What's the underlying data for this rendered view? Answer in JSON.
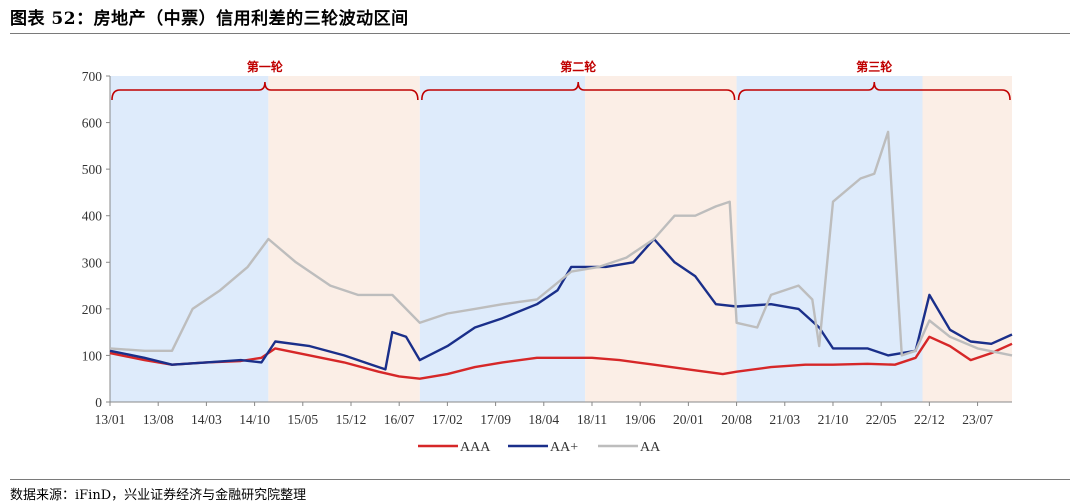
{
  "title": "图表 52：房地产（中票）信用利差的三轮波动区间",
  "source": "数据来源：iFinD，兴业证券经济与金融研究院整理",
  "chart_data": {
    "type": "line",
    "x_ticks": [
      "13/01",
      "13/08",
      "14/03",
      "14/10",
      "15/05",
      "15/12",
      "16/07",
      "17/02",
      "17/09",
      "18/04",
      "18/11",
      "19/06",
      "20/01",
      "20/08",
      "21/03",
      "21/10",
      "22/05",
      "22/12",
      "23/07"
    ],
    "ylim": [
      0,
      700
    ],
    "y_ticks": [
      0,
      100,
      200,
      300,
      400,
      500,
      600,
      700
    ],
    "phases": [
      {
        "label": "第一轮",
        "start": "2013/01",
        "end": "2016/10"
      },
      {
        "label": "第二轮",
        "start": "2016/10",
        "end": "2020/08"
      },
      {
        "label": "第三轮",
        "start": "2020/08",
        "end": "2023/12"
      }
    ],
    "shaded_regions": [
      {
        "start": "2013/01",
        "end": "2014/12",
        "color": "#deebfb"
      },
      {
        "start": "2014/12",
        "end": "2016/10",
        "color": "#fbeee6"
      },
      {
        "start": "2016/10",
        "end": "2018/10",
        "color": "#deebfb"
      },
      {
        "start": "2018/10",
        "end": "2020/08",
        "color": "#fbeee6"
      },
      {
        "start": "2020/08",
        "end": "2022/11",
        "color": "#deebfb"
      },
      {
        "start": "2022/11",
        "end": "2023/12",
        "color": "#fbeee6"
      }
    ],
    "series": [
      {
        "name": "AAA",
        "color": "#d62728",
        "points": [
          [
            "2013/01",
            105
          ],
          [
            "2013/06",
            90
          ],
          [
            "2013/10",
            80
          ],
          [
            "2014/03",
            85
          ],
          [
            "2014/08",
            88
          ],
          [
            "2014/11",
            95
          ],
          [
            "2015/01",
            115
          ],
          [
            "2015/06",
            100
          ],
          [
            "2015/11",
            85
          ],
          [
            "2016/04",
            65
          ],
          [
            "2016/07",
            55
          ],
          [
            "2016/10",
            50
          ],
          [
            "2017/02",
            60
          ],
          [
            "2017/06",
            75
          ],
          [
            "2017/10",
            85
          ],
          [
            "2018/03",
            95
          ],
          [
            "2018/08",
            95
          ],
          [
            "2018/11",
            95
          ],
          [
            "2019/03",
            90
          ],
          [
            "2019/08",
            80
          ],
          [
            "2020/01",
            70
          ],
          [
            "2020/06",
            60
          ],
          [
            "2020/08",
            65
          ],
          [
            "2021/01",
            75
          ],
          [
            "2021/06",
            80
          ],
          [
            "2021/10",
            80
          ],
          [
            "2022/03",
            82
          ],
          [
            "2022/07",
            80
          ],
          [
            "2022/10",
            95
          ],
          [
            "2022/12",
            140
          ],
          [
            "2023/03",
            120
          ],
          [
            "2023/06",
            90
          ],
          [
            "2023/09",
            105
          ],
          [
            "2023/12",
            125
          ]
        ]
      },
      {
        "name": "AA+",
        "color": "#1a2f8a",
        "points": [
          [
            "2013/01",
            110
          ],
          [
            "2013/06",
            95
          ],
          [
            "2013/10",
            80
          ],
          [
            "2014/03",
            85
          ],
          [
            "2014/08",
            90
          ],
          [
            "2014/11",
            85
          ],
          [
            "2015/01",
            130
          ],
          [
            "2015/06",
            120
          ],
          [
            "2015/11",
            100
          ],
          [
            "2016/03",
            80
          ],
          [
            "2016/05",
            70
          ],
          [
            "2016/06",
            150
          ],
          [
            "2016/08",
            140
          ],
          [
            "2016/10",
            90
          ],
          [
            "2017/02",
            120
          ],
          [
            "2017/06",
            160
          ],
          [
            "2017/10",
            180
          ],
          [
            "2018/03",
            210
          ],
          [
            "2018/06",
            240
          ],
          [
            "2018/08",
            290
          ],
          [
            "2019/01",
            290
          ],
          [
            "2019/05",
            300
          ],
          [
            "2019/08",
            350
          ],
          [
            "2019/11",
            300
          ],
          [
            "2020/02",
            270
          ],
          [
            "2020/05",
            210
          ],
          [
            "2020/08",
            205
          ],
          [
            "2021/01",
            210
          ],
          [
            "2021/05",
            200
          ],
          [
            "2021/08",
            160
          ],
          [
            "2021/10",
            115
          ],
          [
            "2022/03",
            115
          ],
          [
            "2022/06",
            100
          ],
          [
            "2022/10",
            110
          ],
          [
            "2022/12",
            230
          ],
          [
            "2023/03",
            155
          ],
          [
            "2023/06",
            130
          ],
          [
            "2023/09",
            125
          ],
          [
            "2023/12",
            145
          ]
        ]
      },
      {
        "name": "AA",
        "color": "#bdbdbd",
        "points": [
          [
            "2013/01",
            115
          ],
          [
            "2013/06",
            110
          ],
          [
            "2013/10",
            110
          ],
          [
            "2014/01",
            200
          ],
          [
            "2014/05",
            240
          ],
          [
            "2014/09",
            290
          ],
          [
            "2014/12",
            350
          ],
          [
            "2015/04",
            300
          ],
          [
            "2015/09",
            250
          ],
          [
            "2016/01",
            230
          ],
          [
            "2016/06",
            230
          ],
          [
            "2016/10",
            170
          ],
          [
            "2017/02",
            190
          ],
          [
            "2017/06",
            200
          ],
          [
            "2017/10",
            210
          ],
          [
            "2018/03",
            220
          ],
          [
            "2018/08",
            280
          ],
          [
            "2018/12",
            290
          ],
          [
            "2019/04",
            310
          ],
          [
            "2019/08",
            350
          ],
          [
            "2019/11",
            400
          ],
          [
            "2020/02",
            400
          ],
          [
            "2020/05",
            420
          ],
          [
            "2020/07",
            430
          ],
          [
            "2020/08",
            170
          ],
          [
            "2020/11",
            160
          ],
          [
            "2021/01",
            230
          ],
          [
            "2021/05",
            250
          ],
          [
            "2021/07",
            220
          ],
          [
            "2021/08",
            120
          ],
          [
            "2021/10",
            430
          ],
          [
            "2022/02",
            480
          ],
          [
            "2022/04",
            490
          ],
          [
            "2022/06",
            580
          ],
          [
            "2022/08",
            100
          ],
          [
            "2022/10",
            110
          ],
          [
            "2022/12",
            175
          ],
          [
            "2023/03",
            140
          ],
          [
            "2023/07",
            115
          ],
          [
            "2023/12",
            100
          ]
        ]
      }
    ]
  }
}
